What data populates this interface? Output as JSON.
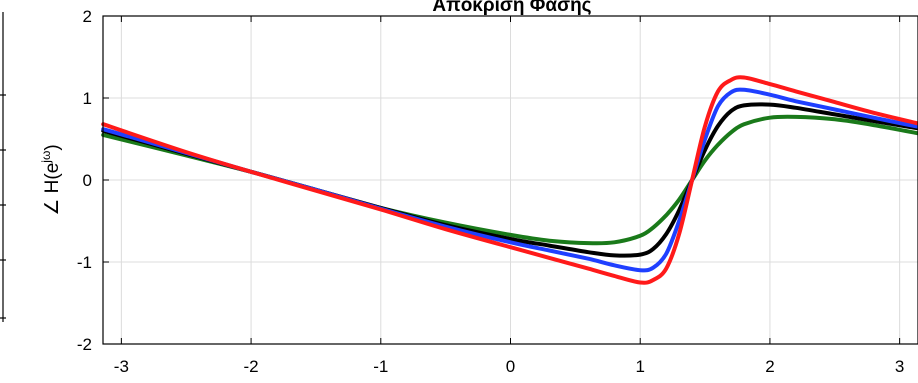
{
  "chart_data": {
    "type": "line",
    "title": "Απόκριση Φάσης",
    "ylabel": "∠ H(e^{jω})",
    "ylabel_main": "∠ H(e",
    "ylabel_sup": "jω",
    "ylabel_close": ")",
    "xlim": [
      -3.1416,
      3.1416
    ],
    "ylim": [
      -2,
      2
    ],
    "xticks": [
      -3,
      -2,
      -1,
      0,
      1,
      2,
      3
    ],
    "yticks": [
      -2,
      -1,
      0,
      1,
      2
    ],
    "xtick_labels": [
      "-3",
      "-2",
      "-1",
      "0",
      "1",
      "2",
      "3"
    ],
    "ytick_labels": [
      "-2",
      "-1",
      "0",
      "1",
      "2"
    ],
    "grid": true,
    "series": [
      {
        "color": "#1a7a1a",
        "x": [
          -3.14,
          -2.5,
          -2.0,
          -1.5,
          -1.0,
          -0.5,
          0.0,
          0.3,
          0.6,
          0.8,
          1.0,
          1.1,
          1.2,
          1.3,
          1.4,
          1.5,
          1.6,
          1.7,
          1.8,
          2.0,
          2.2,
          2.5,
          2.8,
          3.14
        ],
        "y": [
          0.55,
          0.3,
          0.1,
          -0.12,
          -0.34,
          -0.52,
          -0.67,
          -0.74,
          -0.77,
          -0.76,
          -0.68,
          -0.58,
          -0.43,
          -0.24,
          0.0,
          0.24,
          0.43,
          0.58,
          0.68,
          0.76,
          0.77,
          0.74,
          0.67,
          0.57
        ]
      },
      {
        "color": "#000000",
        "x": [
          -3.14,
          -2.5,
          -2.0,
          -1.5,
          -1.0,
          -0.5,
          0.0,
          0.3,
          0.6,
          0.8,
          1.0,
          1.1,
          1.2,
          1.3,
          1.4,
          1.5,
          1.6,
          1.7,
          1.8,
          2.0,
          2.2,
          2.5,
          2.8,
          3.14
        ],
        "y": [
          0.6,
          0.32,
          0.1,
          -0.12,
          -0.34,
          -0.55,
          -0.72,
          -0.8,
          -0.88,
          -0.92,
          -0.91,
          -0.84,
          -0.66,
          -0.37,
          0.0,
          0.37,
          0.66,
          0.84,
          0.91,
          0.92,
          0.88,
          0.8,
          0.72,
          0.63
        ]
      },
      {
        "color": "#1f3fff",
        "x": [
          -3.14,
          -2.5,
          -2.0,
          -1.5,
          -1.0,
          -0.5,
          0.0,
          0.3,
          0.6,
          0.8,
          1.0,
          1.1,
          1.2,
          1.3,
          1.4,
          1.5,
          1.6,
          1.7,
          1.8,
          2.0,
          2.2,
          2.5,
          2.8,
          3.14
        ],
        "y": [
          0.62,
          0.33,
          0.1,
          -0.12,
          -0.35,
          -0.57,
          -0.76,
          -0.86,
          -0.96,
          -1.04,
          -1.1,
          -1.07,
          -0.9,
          -0.5,
          0.0,
          0.5,
          0.9,
          1.07,
          1.1,
          1.04,
          0.96,
          0.86,
          0.76,
          0.65
        ]
      },
      {
        "color": "#ff1a1a",
        "x": [
          -3.14,
          -2.5,
          -2.0,
          -1.5,
          -1.0,
          -0.5,
          0.0,
          0.3,
          0.6,
          0.8,
          1.0,
          1.1,
          1.2,
          1.3,
          1.4,
          1.5,
          1.6,
          1.7,
          1.8,
          2.0,
          2.2,
          2.5,
          2.8,
          3.14
        ],
        "y": [
          0.68,
          0.34,
          0.1,
          -0.13,
          -0.36,
          -0.6,
          -0.82,
          -0.95,
          -1.08,
          -1.17,
          -1.25,
          -1.22,
          -1.08,
          -0.66,
          0.0,
          0.66,
          1.08,
          1.22,
          1.25,
          1.17,
          1.08,
          0.95,
          0.82,
          0.69
        ]
      }
    ]
  }
}
